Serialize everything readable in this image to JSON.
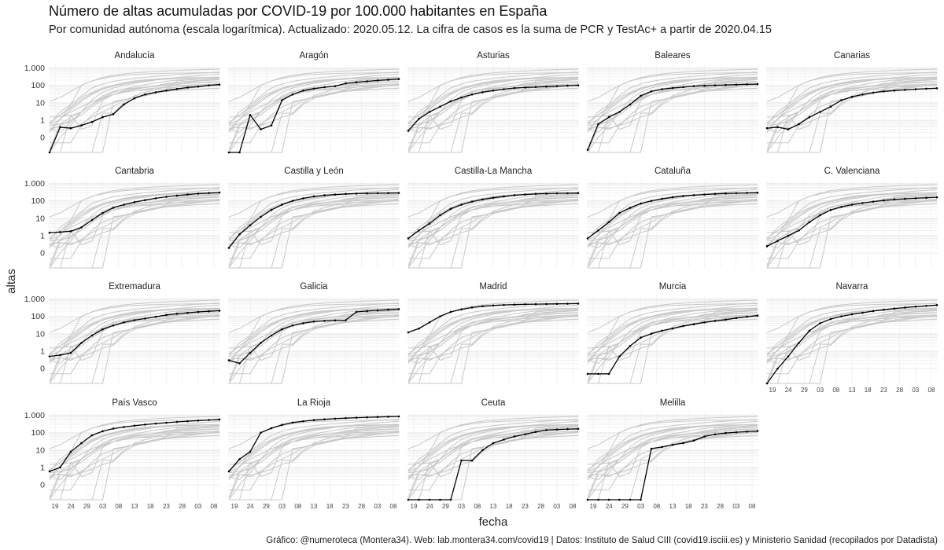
{
  "title": "Número de altas acumuladas por COVID-19 por 100.000 habitantes en España",
  "subtitle": "Por comunidad autónoma (escala logarítmica). Actualizado: 2020.05.12. La cifra de casos es la suma de PCR y TestAc+ a partir de 2020.04.15",
  "caption": "Gráfico: @numeroteca (Montera34). Web: lab.montera34.com/covid19 | Datos: Instituto de Salud CIII (covid19.isciii.es) y Ministerio Sanidad (recopilados por Datadista)",
  "colors": {
    "highlight": "#000000",
    "background_lines": "#c8c8c8",
    "grid": "#ebebeb"
  },
  "chart_data": {
    "type": "line",
    "layout": "small-multiples",
    "xlabel": "fecha",
    "ylabel": "altas",
    "y_scale": "log",
    "y_ticks": [
      0.1,
      1,
      10,
      100,
      1000
    ],
    "y_tick_labels": [
      "0",
      "1",
      "10",
      "100",
      "1.000"
    ],
    "x_tick_labels": [
      "19",
      "24",
      "29",
      "03",
      "08",
      "13",
      "18",
      "23",
      "28",
      "03",
      "08"
    ],
    "facets": [
      {
        "name": "Andalucía",
        "values": [
          0.01,
          0.4,
          0.35,
          0.5,
          0.8,
          1.5,
          2.2,
          8,
          18,
          30,
          40,
          50,
          62,
          75,
          85,
          100,
          110
        ]
      },
      {
        "name": "Aragón",
        "values": [
          0.01,
          0.01,
          2,
          0.3,
          0.5,
          14,
          30,
          50,
          65,
          78,
          90,
          130,
          150,
          170,
          190,
          210,
          230
        ]
      },
      {
        "name": "Asturias",
        "values": [
          0.25,
          1.2,
          3,
          6,
          12,
          20,
          30,
          40,
          50,
          60,
          70,
          75,
          80,
          85,
          90,
          95,
          100
        ]
      },
      {
        "name": "Baleares",
        "values": [
          0.02,
          0.6,
          1.5,
          3,
          8,
          25,
          45,
          60,
          70,
          80,
          90,
          95,
          100,
          105,
          110,
          115,
          118
        ]
      },
      {
        "name": "Canarias",
        "values": [
          0.35,
          0.4,
          0.3,
          0.6,
          1.5,
          3,
          6,
          14,
          22,
          30,
          38,
          45,
          50,
          55,
          60,
          64,
          68
        ]
      },
      {
        "name": "Cantabria",
        "values": [
          1.5,
          1.6,
          1.8,
          3,
          8,
          20,
          40,
          60,
          85,
          110,
          140,
          170,
          200,
          230,
          260,
          280,
          300
        ]
      },
      {
        "name": "Castilla y León",
        "values": [
          0.2,
          1.2,
          4,
          12,
          30,
          60,
          100,
          140,
          180,
          210,
          230,
          250,
          260,
          270,
          275,
          280,
          285
        ]
      },
      {
        "name": "Castilla-La Mancha",
        "values": [
          0.7,
          2,
          5,
          15,
          35,
          60,
          90,
          120,
          150,
          180,
          210,
          230,
          250,
          260,
          270,
          275,
          280
        ]
      },
      {
        "name": "Cataluña",
        "values": [
          0.7,
          2,
          6,
          20,
          40,
          70,
          100,
          130,
          160,
          190,
          210,
          230,
          250,
          265,
          275,
          285,
          295
        ]
      },
      {
        "name": "C. Valenciana",
        "values": [
          0.25,
          0.5,
          1,
          2,
          6,
          15,
          30,
          45,
          60,
          75,
          90,
          105,
          120,
          130,
          140,
          150,
          160
        ]
      },
      {
        "name": "Extremadura",
        "values": [
          0.5,
          0.6,
          0.8,
          3,
          8,
          18,
          30,
          45,
          60,
          75,
          95,
          120,
          140,
          160,
          180,
          195,
          210
        ]
      },
      {
        "name": "Galicia",
        "values": [
          0.3,
          0.2,
          0.8,
          3,
          8,
          18,
          30,
          40,
          50,
          55,
          58,
          60,
          180,
          200,
          220,
          240,
          260
        ]
      },
      {
        "name": "Madrid",
        "values": [
          12,
          20,
          45,
          100,
          180,
          250,
          320,
          380,
          420,
          450,
          470,
          490,
          500,
          510,
          520,
          530,
          540
        ]
      },
      {
        "name": "Murcia",
        "values": [
          0.05,
          0.05,
          0.05,
          0.5,
          2,
          6,
          10,
          15,
          20,
          28,
          35,
          45,
          55,
          65,
          80,
          95,
          110
        ]
      },
      {
        "name": "Navarra",
        "values": [
          0.01,
          0.1,
          0.5,
          3,
          15,
          40,
          70,
          100,
          130,
          160,
          200,
          240,
          280,
          320,
          360,
          400,
          440
        ]
      },
      {
        "name": "País Vasco",
        "values": [
          0.6,
          1,
          8,
          25,
          70,
          120,
          170,
          210,
          250,
          290,
          330,
          370,
          410,
          450,
          490,
          530,
          570
        ]
      },
      {
        "name": "La Rioja",
        "values": [
          0.6,
          3,
          8,
          100,
          180,
          280,
          380,
          450,
          520,
          580,
          630,
          680,
          720,
          760,
          790,
          820,
          850
        ]
      },
      {
        "name": "Ceuta",
        "values": [
          0.01,
          0.01,
          0.01,
          0.01,
          0.01,
          2.5,
          2.5,
          10,
          25,
          40,
          60,
          80,
          110,
          140,
          150,
          160,
          165
        ]
      },
      {
        "name": "Melilla",
        "values": [
          0.01,
          0.01,
          0.01,
          0.01,
          0.01,
          0.01,
          12,
          15,
          20,
          25,
          35,
          60,
          80,
          95,
          105,
          115,
          125
        ]
      }
    ]
  }
}
